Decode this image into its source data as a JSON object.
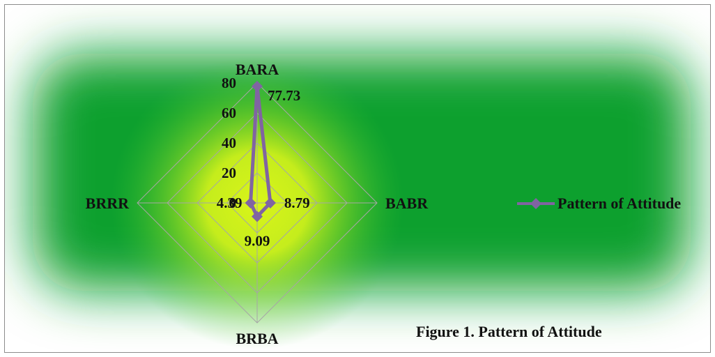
{
  "caption": "Figure 1. Pattern of Attitude",
  "chart_data": {
    "type": "radar",
    "categories": [
      "BARA",
      "BABR",
      "BRBA",
      "BRRR"
    ],
    "series": [
      {
        "name": "Pattern of Attitude",
        "values": [
          77.73,
          8.79,
          9.09,
          4.39
        ],
        "data_labels": [
          "77.73",
          "8.79",
          "9.09",
          "4.39"
        ],
        "color": "#8064a2"
      }
    ],
    "rmin": 0,
    "rmax": 80,
    "ticks": [
      0,
      20,
      40,
      60,
      80
    ],
    "tick_labels": [
      "0",
      "20",
      "40",
      "60",
      "80"
    ],
    "grid": true,
    "legend_position": "right",
    "background": {
      "glow_center": "#d9f51a",
      "glow_mid": "#3cc236",
      "glow_outer": "#07a02e",
      "edge": "#ffffff"
    },
    "grid_color": "#a6a6a6"
  }
}
